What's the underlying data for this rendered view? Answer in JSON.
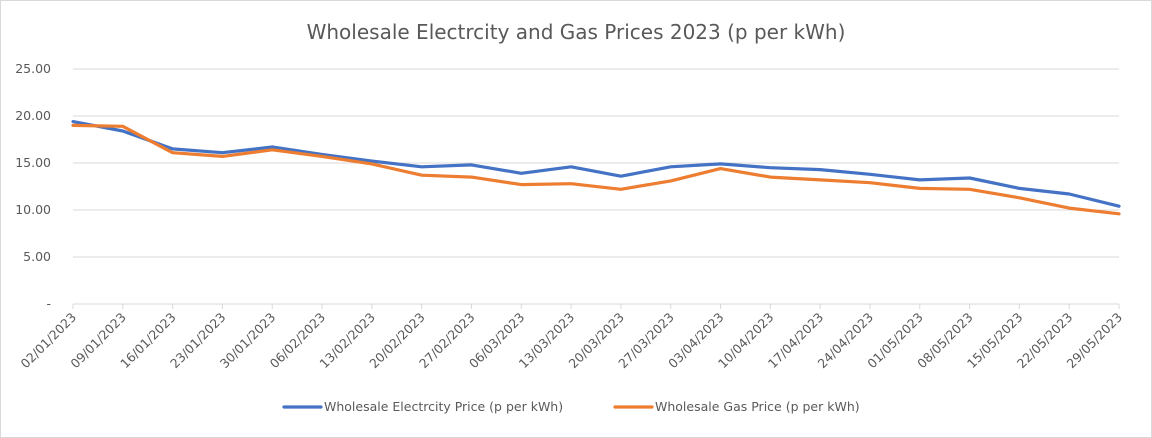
{
  "chart_data": {
    "type": "line",
    "title": "Wholesale Electrcity and Gas Prices 2023 (p per kWh)",
    "xlabel": "",
    "ylabel": "",
    "ylim": [
      0,
      25
    ],
    "yticks": [
      "-",
      "5.00",
      "10.00",
      "15.00",
      "20.00",
      "25.00"
    ],
    "ytick_values": [
      0,
      5,
      10,
      15,
      20,
      25
    ],
    "grid": true,
    "legend_position": "bottom",
    "categories": [
      "02/01/2023",
      "09/01/2023",
      "16/01/2023",
      "23/01/2023",
      "30/01/2023",
      "06/02/2023",
      "13/02/2023",
      "20/02/2023",
      "27/02/2023",
      "06/03/2023",
      "13/03/2023",
      "20/03/2023",
      "27/03/2023",
      "03/04/2023",
      "10/04/2023",
      "17/04/2023",
      "24/04/2023",
      "01/05/2023",
      "08/05/2023",
      "15/05/2023",
      "22/05/2023",
      "29/05/2023"
    ],
    "series": [
      {
        "name": "Wholesale Electrcity Price (p per kWh)",
        "color": "#4472c4",
        "values": [
          19.4,
          18.4,
          16.5,
          16.1,
          16.7,
          15.9,
          15.2,
          14.6,
          14.8,
          13.9,
          14.6,
          13.6,
          14.6,
          14.9,
          14.5,
          14.3,
          13.8,
          13.2,
          13.4,
          12.3,
          11.7,
          10.4
        ]
      },
      {
        "name": "Wholesale Gas Price (p per kWh)",
        "color": "#ed7d31",
        "values": [
          19.0,
          18.9,
          16.1,
          15.7,
          16.4,
          15.7,
          14.9,
          13.7,
          13.5,
          12.7,
          12.8,
          12.2,
          13.1,
          14.4,
          13.5,
          13.2,
          12.9,
          12.3,
          12.2,
          11.3,
          10.2,
          9.6
        ]
      }
    ]
  }
}
